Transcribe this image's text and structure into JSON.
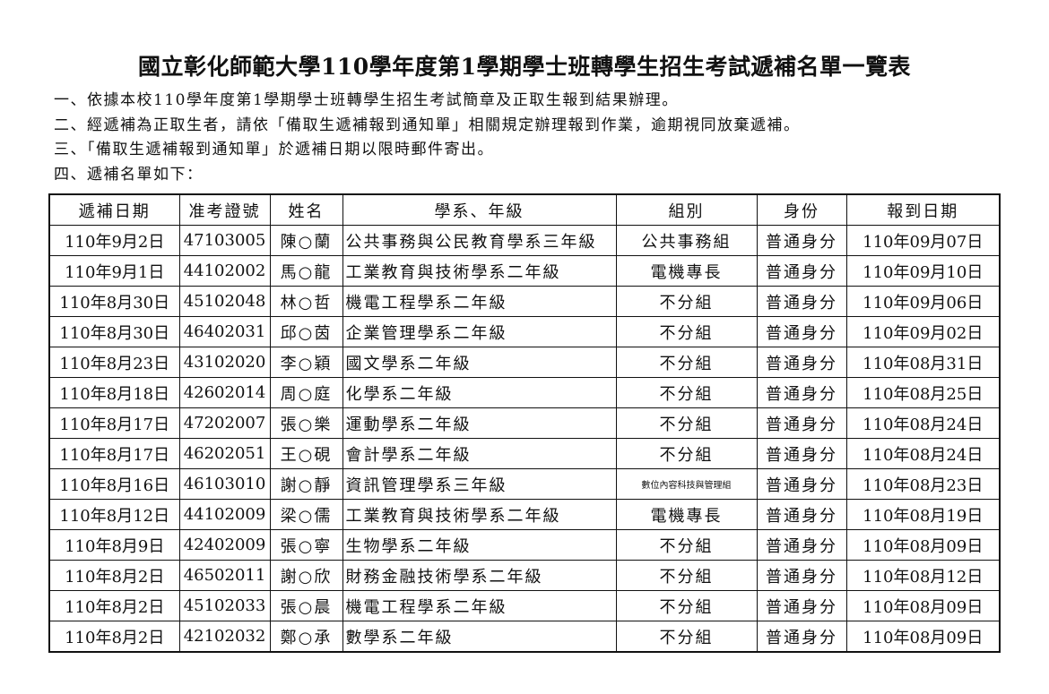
{
  "title": "國立彰化師範大學110學年度第1學期學士班轉學生招生考試遞補名單一覽表",
  "notes": [
    "一、依據本校110學年度第1學期學士班轉學生招生考試簡章及正取生報到結果辦理。",
    "二、經遞補為正取生者，請依「備取生遞補報到通知單」相關規定辦理報到作業，逾期視同放棄遞補。",
    "三、「備取生遞補報到通知單」於遞補日期以限時郵件寄出。",
    "四、遞補名單如下："
  ],
  "table": {
    "headers": [
      "遞補日期",
      "准考證號",
      "姓名",
      "學系、年級",
      "組別",
      "身份",
      "報到日期"
    ],
    "rows": [
      [
        "110年9月2日",
        "47103005",
        "陳○蘭",
        "公共事務與公民教育學系三年級",
        "公共事務組",
        "普通身分",
        "110年09月07日"
      ],
      [
        "110年9月1日",
        "44102002",
        "馬○龍",
        "工業教育與技術學系二年級",
        "電機專長",
        "普通身分",
        "110年09月10日"
      ],
      [
        "110年8月30日",
        "45102048",
        "林○哲",
        "機電工程學系二年級",
        "不分組",
        "普通身分",
        "110年09月06日"
      ],
      [
        "110年8月30日",
        "46402031",
        "邱○茵",
        "企業管理學系二年級",
        "不分組",
        "普通身分",
        "110年09月02日"
      ],
      [
        "110年8月23日",
        "43102020",
        "李○穎",
        "國文學系二年級",
        "不分組",
        "普通身分",
        "110年08月31日"
      ],
      [
        "110年8月18日",
        "42602014",
        "周○庭",
        "化學系二年級",
        "不分組",
        "普通身分",
        "110年08月25日"
      ],
      [
        "110年8月17日",
        "47202007",
        "張○樂",
        "運動學系二年級",
        "不分組",
        "普通身分",
        "110年08月24日"
      ],
      [
        "110年8月17日",
        "46202051",
        "王○硯",
        "會計學系二年級",
        "不分組",
        "普通身分",
        "110年08月24日"
      ],
      [
        "110年8月16日",
        "46103010",
        "謝○靜",
        "資訊管理學系三年級",
        "數位內容科技與管理組",
        "普通身分",
        "110年08月23日"
      ],
      [
        "110年8月12日",
        "44102009",
        "梁○儒",
        "工業教育與技術學系二年級",
        "電機專長",
        "普通身分",
        "110年08月19日"
      ],
      [
        "110年8月9日",
        "42402009",
        "張○寧",
        "生物學系二年級",
        "不分組",
        "普通身分",
        "110年08月09日"
      ],
      [
        "110年8月2日",
        "46502011",
        "謝○欣",
        "財務金融技術學系二年級",
        "不分組",
        "普通身分",
        "110年08月12日"
      ],
      [
        "110年8月2日",
        "45102033",
        "張○晨",
        "機電工程學系二年級",
        "不分組",
        "普通身分",
        "110年08月09日"
      ],
      [
        "110年8月2日",
        "42102032",
        "鄭○承",
        "數學系二年級",
        "不分組",
        "普通身分",
        "110年08月09日"
      ]
    ]
  }
}
